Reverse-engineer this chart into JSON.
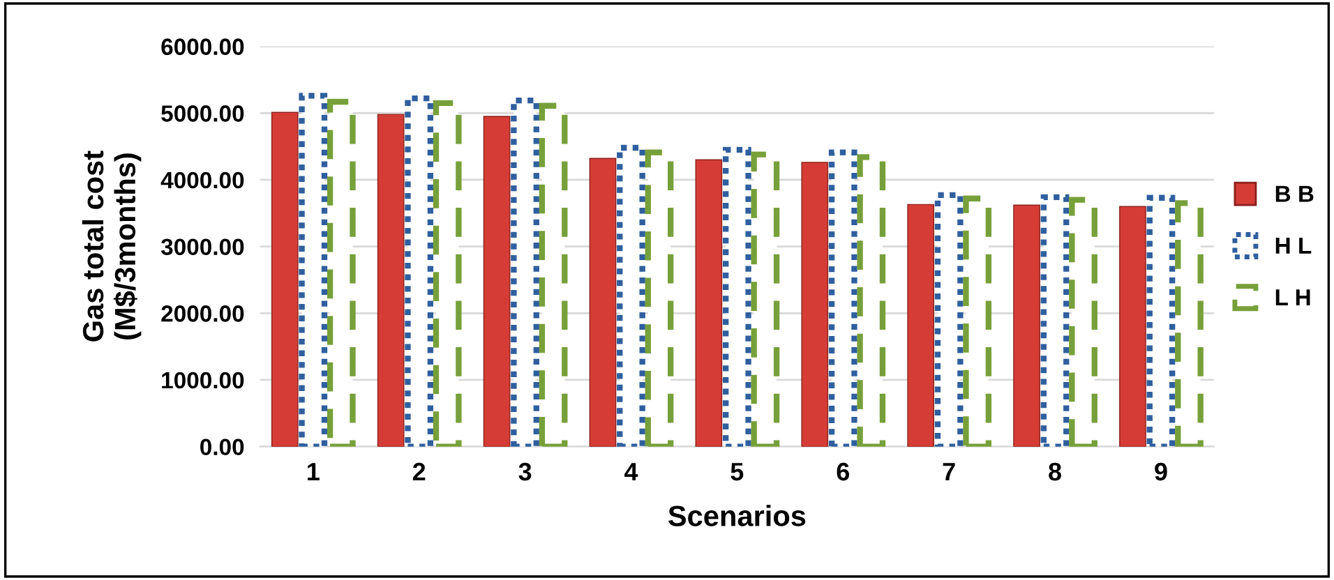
{
  "chart_data": {
    "type": "bar",
    "xlabel": "Scenarios",
    "ylabel": "Gas total cost\n(M$/3months)",
    "categories": [
      "1",
      "2",
      "3",
      "4",
      "5",
      "6",
      "7",
      "8",
      "9"
    ],
    "series": [
      {
        "name": "B B",
        "color": "#d63c36",
        "line_style": "solid",
        "values": [
          5010,
          4980,
          4950,
          4320,
          4300,
          4260,
          3630,
          3620,
          3600
        ]
      },
      {
        "name": "H L",
        "color": "#2f5f9e",
        "line_style": "dotted",
        "values": [
          5260,
          5220,
          5190,
          4480,
          4450,
          4410,
          3770,
          3740,
          3730
        ]
      },
      {
        "name": "L H",
        "color": "#77a03a",
        "line_style": "dashed",
        "values": [
          5170,
          5150,
          5110,
          4410,
          4380,
          4340,
          3720,
          3700,
          3650
        ]
      }
    ],
    "ylim": [
      0,
      6000
    ],
    "yticks": [
      {
        "value": 0,
        "label": "0.00"
      },
      {
        "value": 1000,
        "label": "1000.00"
      },
      {
        "value": 2000,
        "label": "2000.00"
      },
      {
        "value": 3000,
        "label": "3000.00"
      },
      {
        "value": 4000,
        "label": "4000.00"
      },
      {
        "value": 5000,
        "label": "5000.00"
      },
      {
        "value": 6000,
        "label": "6000.00"
      }
    ],
    "grid": "y",
    "legend": "right"
  }
}
